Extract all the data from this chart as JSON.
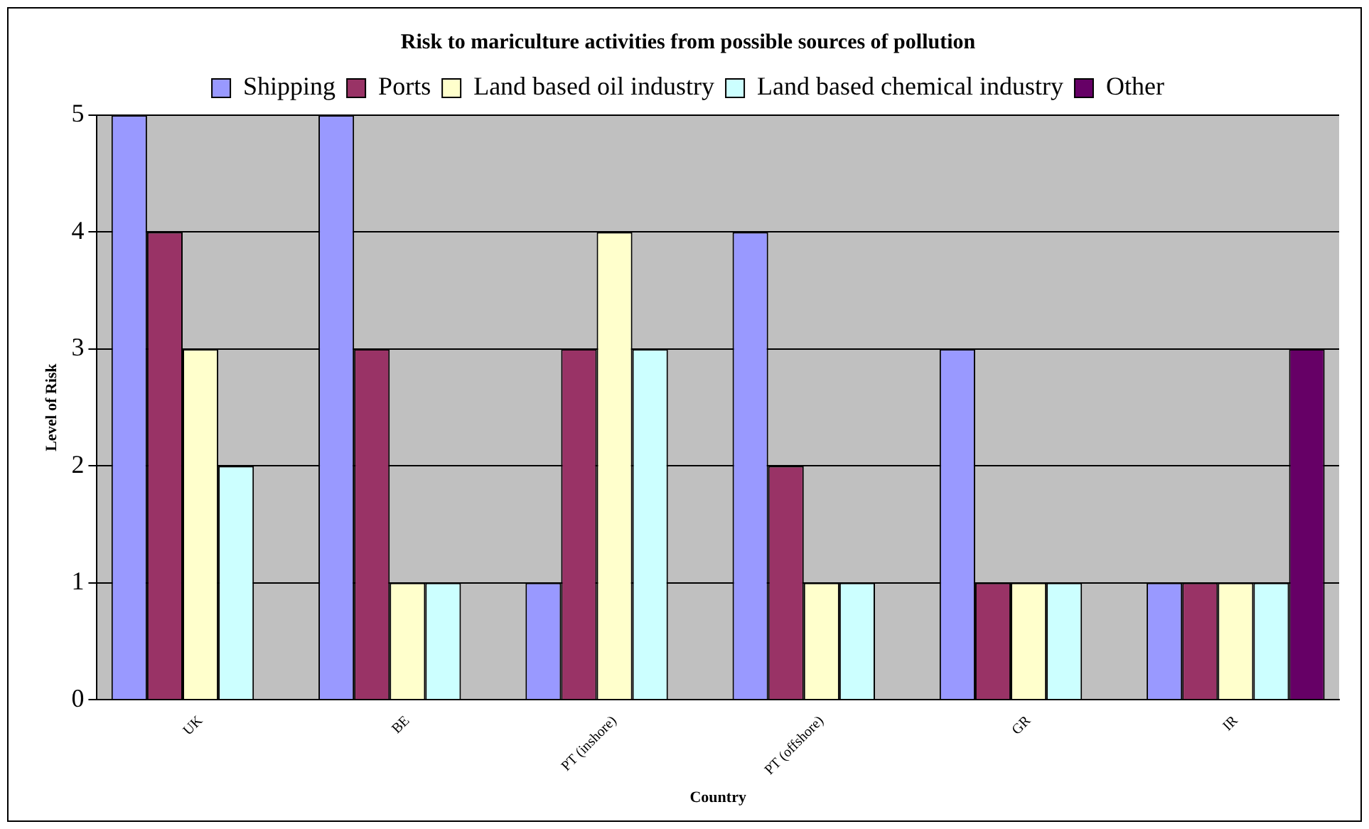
{
  "chart_data": {
    "type": "bar",
    "title": "Risk to mariculture activities from possible sources of pollution",
    "xlabel": "Country",
    "ylabel": "Level of Risk",
    "categories": [
      "UK",
      "BE",
      "PT (inshore)",
      "PT (offshore)",
      "GR",
      "IR"
    ],
    "series": [
      {
        "name": "Shipping",
        "color": "#9999ff",
        "values": [
          5,
          5,
          1,
          4,
          3,
          1
        ]
      },
      {
        "name": "Ports",
        "color": "#993366",
        "values": [
          4,
          3,
          3,
          2,
          1,
          1
        ]
      },
      {
        "name": "Land based oil industry",
        "color": "#ffffcc",
        "values": [
          3,
          1,
          4,
          1,
          1,
          1
        ]
      },
      {
        "name": "Land based chemical industry",
        "color": "#ccffff",
        "values": [
          2,
          1,
          3,
          1,
          1,
          1
        ]
      },
      {
        "name": "Other",
        "color": "#660066",
        "values": [
          null,
          null,
          null,
          null,
          null,
          3
        ]
      }
    ],
    "ylim": [
      0,
      5
    ],
    "yticks": [
      0,
      1,
      2,
      3,
      4,
      5
    ],
    "grid": "y",
    "legend": "top"
  }
}
